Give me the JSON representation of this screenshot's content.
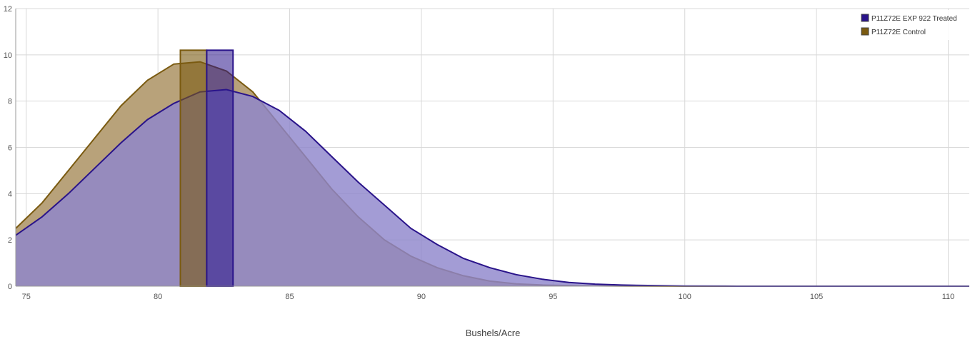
{
  "chart_data": {
    "type": "area",
    "title": "",
    "xlabel": "Bushels/Acre",
    "ylabel": "",
    "xlim": [
      74.6,
      110.8
    ],
    "ylim": [
      0,
      12
    ],
    "x_ticks": [
      75,
      80,
      85,
      90,
      95,
      100,
      105,
      110
    ],
    "y_ticks": [
      0,
      2,
      4,
      6,
      8,
      10,
      12
    ],
    "grid": true,
    "legend_position": "top-right",
    "series": [
      {
        "name": "P11Z72E Control",
        "color": "#7a5a10",
        "fill": "#b8a27a",
        "points": [
          [
            74.6,
            2.5
          ],
          [
            75.6,
            3.6
          ],
          [
            76.6,
            5.0
          ],
          [
            77.6,
            6.4
          ],
          [
            78.6,
            7.8
          ],
          [
            79.6,
            8.9
          ],
          [
            80.6,
            9.6
          ],
          [
            81.6,
            9.7
          ],
          [
            82.6,
            9.3
          ],
          [
            83.6,
            8.4
          ],
          [
            84.6,
            7.0
          ],
          [
            85.6,
            5.6
          ],
          [
            86.6,
            4.2
          ],
          [
            87.6,
            3.0
          ],
          [
            88.6,
            2.0
          ],
          [
            89.6,
            1.3
          ],
          [
            90.6,
            0.8
          ],
          [
            91.6,
            0.45
          ],
          [
            92.6,
            0.22
          ],
          [
            93.6,
            0.1
          ],
          [
            94.6,
            0.05
          ],
          [
            96.0,
            0.02
          ],
          [
            98.0,
            0.01
          ],
          [
            100.0,
            0.0
          ],
          [
            110.8,
            0.0
          ]
        ],
        "marker_bar": {
          "x_start": 80.85,
          "x_end": 81.85,
          "value": 10.2
        }
      },
      {
        "name": "P11Z72E EXP 922 Treated",
        "color": "#2a148a",
        "fill": "#8f86cc",
        "points": [
          [
            74.6,
            2.2
          ],
          [
            75.6,
            3.0
          ],
          [
            76.6,
            4.0
          ],
          [
            77.6,
            5.1
          ],
          [
            78.6,
            6.2
          ],
          [
            79.6,
            7.2
          ],
          [
            80.6,
            7.9
          ],
          [
            81.6,
            8.4
          ],
          [
            82.6,
            8.5
          ],
          [
            83.6,
            8.2
          ],
          [
            84.6,
            7.6
          ],
          [
            85.6,
            6.7
          ],
          [
            86.6,
            5.6
          ],
          [
            87.6,
            4.5
          ],
          [
            88.6,
            3.5
          ],
          [
            89.6,
            2.5
          ],
          [
            90.6,
            1.8
          ],
          [
            91.6,
            1.2
          ],
          [
            92.6,
            0.8
          ],
          [
            93.6,
            0.5
          ],
          [
            94.6,
            0.3
          ],
          [
            95.6,
            0.16
          ],
          [
            96.6,
            0.09
          ],
          [
            97.6,
            0.05
          ],
          [
            98.6,
            0.03
          ],
          [
            100.0,
            0.01
          ],
          [
            102.0,
            0.0
          ],
          [
            110.8,
            0.0
          ]
        ],
        "marker_bar": {
          "x_start": 81.85,
          "x_end": 82.85,
          "value": 10.2
        }
      }
    ],
    "legend": [
      {
        "label": "P11Z72E EXP 922 Treated",
        "color": "#2a148a"
      },
      {
        "label": "P11Z72E Control",
        "color": "#7a5a10"
      }
    ]
  }
}
